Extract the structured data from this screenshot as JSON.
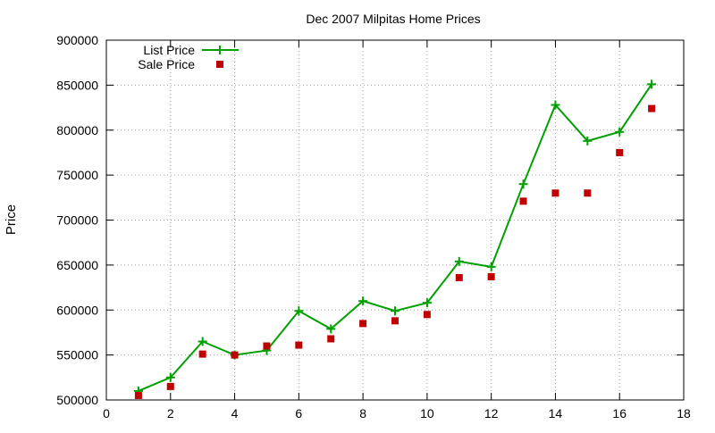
{
  "chart_data": {
    "type": "line",
    "title": "Dec 2007 Milpitas Home Prices",
    "xlabel": "",
    "ylabel": "Price",
    "xlim": [
      0,
      18
    ],
    "ylim": [
      500000,
      900000
    ],
    "xticks": [
      0,
      2,
      4,
      6,
      8,
      10,
      12,
      14,
      16,
      18
    ],
    "yticks": [
      500000,
      550000,
      600000,
      650000,
      700000,
      750000,
      800000,
      850000,
      900000
    ],
    "grid": true,
    "legend_position": "top-left",
    "series": [
      {
        "name": "List Price",
        "style": "line+cross",
        "color": "#00a000",
        "x": [
          1,
          2,
          3,
          4,
          5,
          6,
          7,
          8,
          9,
          10,
          11,
          12,
          13,
          14,
          15,
          16,
          17
        ],
        "y": [
          510000,
          525000,
          565000,
          550000,
          555000,
          599000,
          579000,
          610000,
          599000,
          608000,
          654000,
          648000,
          740000,
          828000,
          788000,
          798000,
          851000
        ]
      },
      {
        "name": "Sale Price",
        "style": "square-markers",
        "color": "#c00000",
        "x": [
          1,
          2,
          3,
          4,
          5,
          6,
          7,
          8,
          9,
          10,
          11,
          12,
          13,
          14,
          15,
          16,
          17
        ],
        "y": [
          505000,
          515000,
          551000,
          550000,
          560000,
          561000,
          568000,
          585000,
          588000,
          595000,
          636000,
          637000,
          721000,
          730000,
          730000,
          775000,
          824000
        ]
      }
    ]
  }
}
